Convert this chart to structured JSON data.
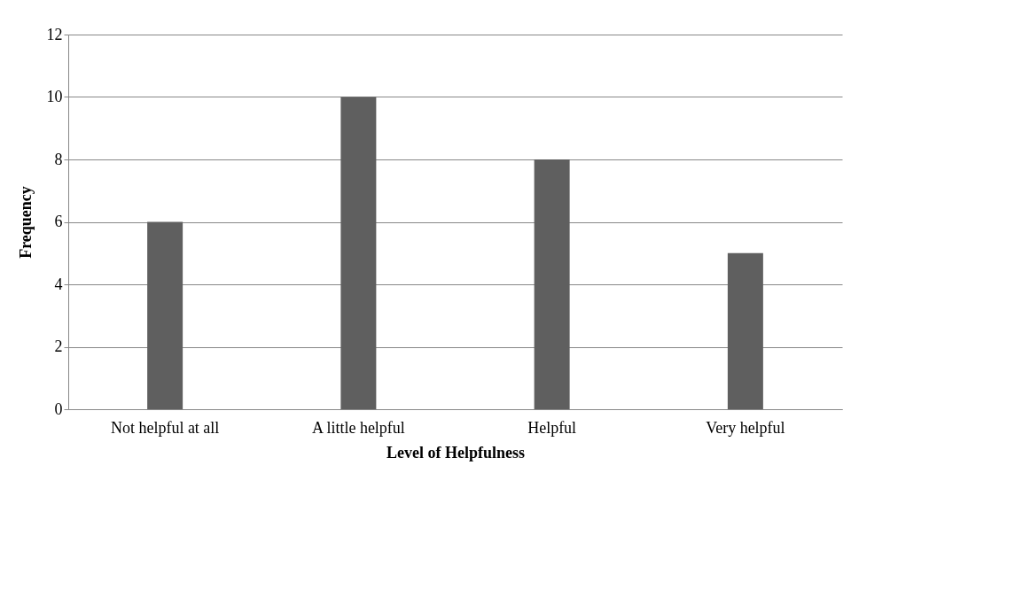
{
  "chart_data": {
    "type": "bar",
    "xlabel": "Level of Helpfulness",
    "ylabel": "Frequency",
    "categories": [
      "Not helpful at all",
      "A little helpful",
      "Helpful",
      "Very helpful"
    ],
    "values": [
      6,
      10,
      8,
      5
    ],
    "color": "#5f5f5f",
    "ylim": [
      0,
      12
    ],
    "yticks": [
      0,
      2,
      4,
      6,
      8,
      10,
      12
    ],
    "grid": "y"
  }
}
